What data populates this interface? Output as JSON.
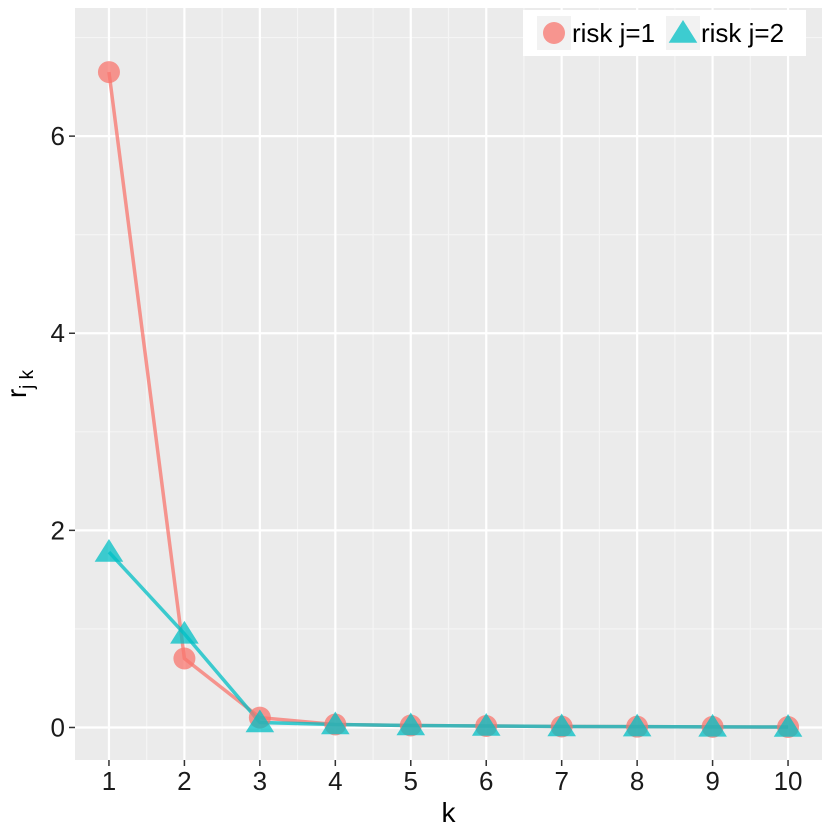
{
  "chart_data": {
    "type": "line",
    "x": [
      1,
      2,
      3,
      4,
      5,
      6,
      7,
      8,
      9,
      10
    ],
    "x_tick_labels": [
      "1",
      "2",
      "3",
      "4",
      "5",
      "6",
      "7",
      "8",
      "9",
      "10"
    ],
    "y_tick_labels": [
      "0",
      "2",
      "4",
      "6"
    ],
    "y_ticks": [
      0,
      2,
      4,
      6
    ],
    "xlim": [
      0.55,
      10.45
    ],
    "ylim": [
      -0.33,
      7.3
    ],
    "xlabel": "k",
    "ylabel": "r",
    "ylabel_subscript": "j k",
    "grid": true,
    "legend_position": "top-right",
    "series": [
      {
        "name": "risk j=1",
        "marker": "circle",
        "color": "#F8766D",
        "values": [
          6.65,
          0.7,
          0.1,
          0.03,
          0.02,
          0.015,
          0.01,
          0.008,
          0.006,
          0.005
        ]
      },
      {
        "name": "risk j=2",
        "marker": "triangle",
        "color": "#00BFC4",
        "values": [
          1.78,
          0.95,
          0.05,
          0.03,
          0.02,
          0.015,
          0.01,
          0.008,
          0.006,
          0.005
        ]
      }
    ]
  }
}
